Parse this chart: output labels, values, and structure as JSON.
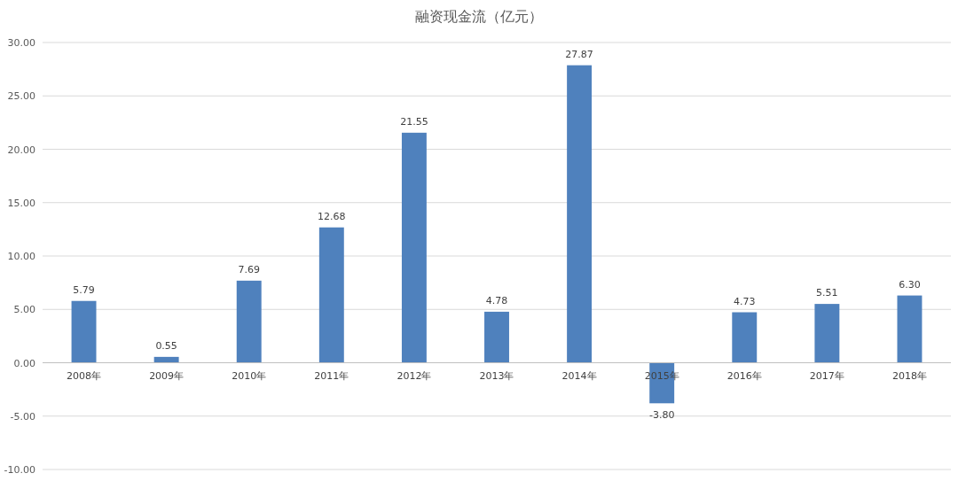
{
  "chart_data": {
    "type": "bar",
    "title": "融资现金流（亿元）",
    "categories": [
      "2008年",
      "2009年",
      "2010年",
      "2011年",
      "2012年",
      "2013年",
      "2014年",
      "2015年",
      "2016年",
      "2017年",
      "2018年"
    ],
    "values": [
      5.79,
      0.55,
      7.69,
      12.68,
      21.55,
      4.78,
      27.87,
      -3.8,
      4.73,
      5.51,
      6.3
    ],
    "value_labels": [
      "5.79",
      "0.55",
      "7.69",
      "12.68",
      "21.55",
      "4.78",
      "27.87",
      "-3.80",
      "4.73",
      "5.51",
      "6.30"
    ],
    "color": "#4f81bd",
    "ylim": [
      -10,
      30
    ],
    "yticks": [
      {
        "value": -10,
        "label": "-10.00"
      },
      {
        "value": -5,
        "label": "-5.00"
      },
      {
        "value": 0,
        "label": "0.00"
      },
      {
        "value": 5,
        "label": "5.00"
      },
      {
        "value": 10,
        "label": "10.00"
      },
      {
        "value": 15,
        "label": "15.00"
      },
      {
        "value": 20,
        "label": "20.00"
      },
      {
        "value": 25,
        "label": "25.00"
      },
      {
        "value": 30,
        "label": "30.00"
      }
    ],
    "grid": "y"
  }
}
